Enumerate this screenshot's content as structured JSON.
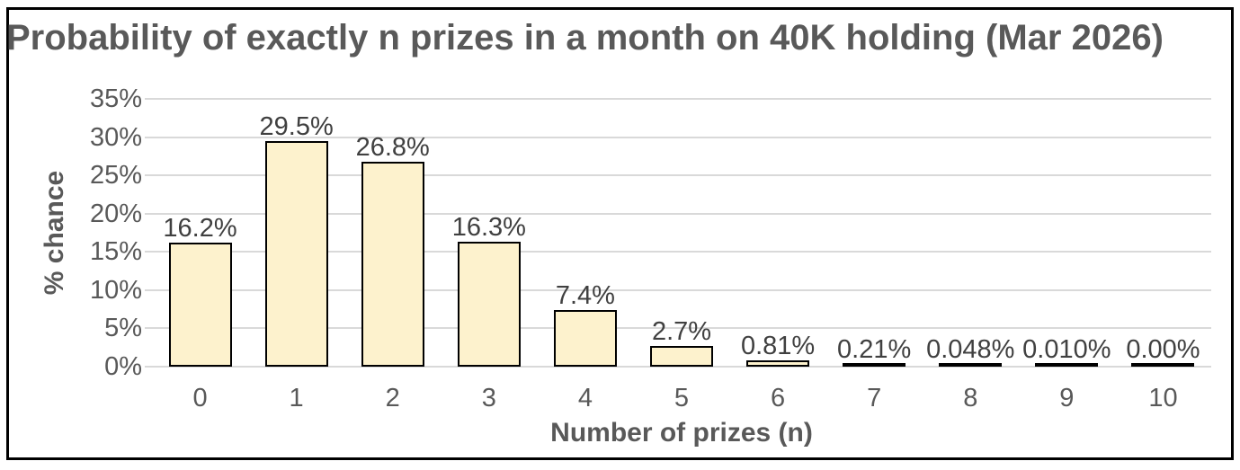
{
  "chart_data": {
    "type": "bar",
    "title": "Probability of exactly n prizes in a month on 40K holding (Mar 2026)",
    "xlabel": "Number of prizes (n)",
    "ylabel": "% chance",
    "categories": [
      "0",
      "1",
      "2",
      "3",
      "4",
      "5",
      "6",
      "7",
      "8",
      "9",
      "10"
    ],
    "values": [
      16.2,
      29.5,
      26.8,
      16.3,
      7.4,
      2.7,
      0.81,
      0.21,
      0.048,
      0.01,
      0.0
    ],
    "bar_labels": [
      "16.2%",
      "29.5%",
      "26.8%",
      "16.3%",
      "7.4%",
      "2.7%",
      "0.81%",
      "0.21%",
      "0.048%",
      "0.010%",
      "0.00%"
    ],
    "y_ticks": [
      "0%",
      "5%",
      "10%",
      "15%",
      "20%",
      "25%",
      "30%",
      "35%"
    ],
    "ylim": [
      0,
      35
    ],
    "grid": true,
    "legend": "none"
  },
  "colors": {
    "bar_fill": "#FDF2CD",
    "bar_border": "#000000",
    "gridline": "#D9D9D9",
    "axis_text": "#595959",
    "data_label": "#404040",
    "frame_border": "#000000",
    "background": "#FFFFFF"
  }
}
